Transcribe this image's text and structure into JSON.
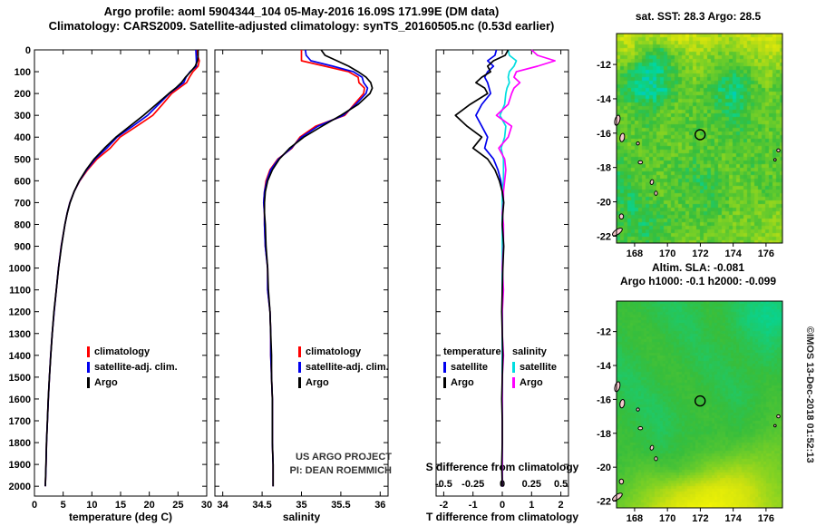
{
  "titles": {
    "line1": "Argo profile: aoml 5904344_104 05-May-2016 16.09S 171.99E (DM data)",
    "line2": "Climatology: CARS2009. Satellite-adjusted climatology: synTS_20160505.nc (0.53d earlier)"
  },
  "credits": {
    "project": "US ARGO PROJECT",
    "pi": "PI: DEAN ROEMMICH",
    "stamp": "©IMOS 13-Dec-2018 01:52:13"
  },
  "colors": {
    "climatology": "#ff0000",
    "satellite_clim": "#0000ee",
    "argo": "#000000",
    "s_satellite": "#00dde0",
    "s_argo": "#ff00ff"
  },
  "islands": [
    {
      "lon": 166.95,
      "lat": -15.25,
      "w": 0.3,
      "h": 0.6,
      "rot": 15
    },
    {
      "lon": 167.25,
      "lat": -16.25,
      "w": 0.28,
      "h": 0.5,
      "rot": 10
    },
    {
      "lon": 168.2,
      "lat": -16.6,
      "w": 0.18,
      "h": 0.18,
      "rot": 0
    },
    {
      "lon": 168.35,
      "lat": -17.7,
      "w": 0.26,
      "h": 0.18,
      "rot": 0
    },
    {
      "lon": 169.05,
      "lat": -18.85,
      "w": 0.2,
      "h": 0.28,
      "rot": 15
    },
    {
      "lon": 169.3,
      "lat": -19.5,
      "w": 0.18,
      "h": 0.24,
      "rot": 0
    },
    {
      "lon": 167.2,
      "lat": -20.85,
      "w": 0.25,
      "h": 0.3,
      "rot": 0
    },
    {
      "lon": 166.95,
      "lat": -21.75,
      "w": 0.7,
      "h": 0.28,
      "rot": -35
    },
    {
      "lon": 176.75,
      "lat": -17.0,
      "w": 0.2,
      "h": 0.18,
      "rot": 0
    },
    {
      "lon": 176.55,
      "lat": -17.55,
      "w": 0.14,
      "h": 0.14,
      "rot": 0
    }
  ],
  "chart_data": [
    {
      "type": "line",
      "title": "",
      "xlabel": "temperature (deg C)",
      "ylabel": "",
      "xlim": [
        0,
        30
      ],
      "xticks": [
        0,
        5,
        10,
        15,
        20,
        25,
        30
      ],
      "depth_lim": [
        0,
        2045
      ],
      "depth_ticks": [
        0,
        100,
        200,
        300,
        400,
        500,
        600,
        700,
        800,
        900,
        1000,
        1100,
        1200,
        1300,
        1400,
        1500,
        1600,
        1700,
        1800,
        1900,
        2000
      ],
      "depths": [
        0,
        25,
        50,
        75,
        100,
        125,
        150,
        175,
        200,
        250,
        300,
        350,
        400,
        450,
        500,
        550,
        600,
        650,
        700,
        750,
        800,
        900,
        1000,
        1100,
        1200,
        1300,
        1400,
        1500,
        1600,
        1700,
        1800,
        1900,
        2000
      ],
      "legend": [
        "climatology",
        "satellite-adj. clim.",
        "Argo"
      ],
      "series": [
        {
          "name": "climatology",
          "color_key": "climatology",
          "values": [
            28.3,
            28.4,
            28.7,
            28.5,
            27.6,
            27.0,
            26.5,
            25.2,
            23.9,
            22.3,
            20.6,
            17.8,
            14.9,
            13.2,
            10.9,
            9.25,
            7.9,
            6.9,
            6.15,
            5.68,
            5.3,
            4.65,
            4.18,
            3.8,
            3.42,
            3.1,
            2.83,
            2.6,
            2.42,
            2.25,
            2.1,
            2.02,
            1.9
          ]
        },
        {
          "name": "satellite-adj. clim.",
          "color_key": "satellite_clim",
          "values": [
            28.1,
            28.15,
            28.2,
            28.2,
            27.1,
            26.4,
            26.0,
            24.75,
            23.5,
            21.6,
            19.7,
            17.1,
            14.4,
            12.6,
            10.6,
            9.1,
            7.85,
            6.9,
            6.17,
            5.68,
            5.3,
            4.67,
            4.18,
            3.8,
            3.42,
            3.1,
            2.83,
            2.6,
            2.42,
            2.25,
            2.1,
            2.02,
            1.9
          ]
        },
        {
          "name": "Argo",
          "color_key": "argo",
          "values": [
            28.5,
            28.5,
            28.4,
            28.0,
            27.2,
            26.3,
            25.6,
            24.6,
            23.4,
            21.2,
            19.0,
            16.6,
            14.2,
            12.2,
            10.4,
            9.0,
            7.8,
            6.9,
            6.2,
            5.7,
            5.3,
            4.7,
            4.2,
            3.8,
            3.4,
            3.1,
            2.85,
            2.6,
            2.4,
            2.25,
            2.1,
            2.0,
            1.9
          ]
        }
      ]
    },
    {
      "type": "line",
      "title": "",
      "xlabel": "salinity",
      "ylabel": "",
      "xlim": [
        33.9,
        36.1
      ],
      "xticks": [
        34,
        34.5,
        35,
        35.5,
        36
      ],
      "depth_lim": [
        0,
        2045
      ],
      "depth_ticks": [
        0,
        100,
        200,
        300,
        400,
        500,
        600,
        700,
        800,
        900,
        1000,
        1100,
        1200,
        1300,
        1400,
        1500,
        1600,
        1700,
        1800,
        1900,
        2000
      ],
      "depths": [
        0,
        25,
        50,
        75,
        100,
        125,
        150,
        175,
        200,
        250,
        300,
        350,
        400,
        450,
        500,
        550,
        600,
        650,
        700,
        750,
        800,
        900,
        1000,
        1100,
        1200,
        1300,
        1400,
        1500,
        1600,
        1700,
        1800,
        1900,
        2000
      ],
      "legend": [
        "climatology",
        "satellite-adj. clim.",
        "Argo"
      ],
      "series": [
        {
          "name": "climatology",
          "color_key": "climatology",
          "values": [
            35.0,
            35.0,
            35.0,
            35.3,
            35.6,
            35.72,
            35.73,
            35.8,
            35.79,
            35.67,
            35.55,
            35.18,
            34.98,
            34.88,
            34.7,
            34.6,
            34.55,
            34.53,
            34.52,
            34.53,
            34.53,
            34.54,
            34.57,
            34.57,
            34.6,
            34.61,
            34.61,
            34.62,
            34.63,
            34.63,
            34.63,
            34.64,
            34.64
          ]
        },
        {
          "name": "satellite-adj. clim.",
          "color_key": "satellite_clim",
          "values": [
            35.05,
            35.06,
            35.12,
            35.4,
            35.66,
            35.77,
            35.79,
            35.84,
            35.82,
            35.69,
            35.53,
            35.21,
            35.0,
            34.87,
            34.71,
            34.61,
            34.56,
            34.53,
            34.52,
            34.53,
            34.53,
            34.54,
            34.57,
            34.57,
            34.6,
            34.61,
            34.61,
            34.62,
            34.63,
            34.63,
            34.63,
            34.64,
            34.64
          ]
        },
        {
          "name": "Argo",
          "color_key": "argo",
          "values": [
            35.25,
            35.3,
            35.45,
            35.6,
            35.72,
            35.82,
            35.88,
            35.9,
            35.87,
            35.72,
            35.5,
            35.26,
            35.03,
            34.85,
            34.72,
            34.63,
            34.57,
            34.54,
            34.53,
            34.53,
            34.54,
            34.55,
            34.57,
            34.58,
            34.6,
            34.61,
            34.62,
            34.62,
            34.63,
            34.63,
            34.63,
            34.64,
            34.64
          ]
        }
      ]
    },
    {
      "type": "line",
      "title": "",
      "xlabel": "T difference from climatology",
      "ylabel": "",
      "xlim": [
        -2.26,
        2.26
      ],
      "xticks": [
        -2,
        -1,
        0,
        1,
        2
      ],
      "s_axis": {
        "label": "S difference from climatology",
        "ticks": [
          -0.5,
          -0.25,
          0,
          0.25,
          0.5
        ],
        "scale_factor": 4
      },
      "depth_lim": [
        0,
        2045
      ],
      "depth_ticks": [
        0,
        100,
        200,
        300,
        400,
        500,
        600,
        700,
        800,
        900,
        1000,
        1100,
        1200,
        1300,
        1400,
        1500,
        1600,
        1700,
        1800,
        1900,
        2000
      ],
      "depths": [
        0,
        25,
        50,
        75,
        100,
        125,
        150,
        175,
        200,
        250,
        300,
        350,
        400,
        450,
        500,
        550,
        600,
        650,
        700,
        750,
        800,
        900,
        1000,
        1100,
        1200,
        1300,
        1400,
        1500,
        1600,
        1700,
        1800,
        1900,
        2000
      ],
      "legend_groups": [
        {
          "title": "temperature",
          "entries": [
            {
              "label": "satellite",
              "color_key": "satellite_clim"
            },
            {
              "label": "Argo",
              "color_key": "argo"
            }
          ]
        },
        {
          "title": "salinity",
          "entries": [
            {
              "label": "satellite",
              "color_key": "s_satellite"
            },
            {
              "label": "Argo",
              "color_key": "s_argo"
            }
          ]
        }
      ],
      "series": [
        {
          "name": "T satellite",
          "color_key": "satellite_clim",
          "values": [
            -0.2,
            -0.25,
            -0.5,
            -0.3,
            -0.5,
            -0.6,
            -0.5,
            -0.45,
            -0.4,
            -0.7,
            -0.9,
            -0.7,
            -0.5,
            -0.6,
            -0.3,
            -0.15,
            -0.05,
            0,
            0.02,
            0,
            0,
            0.02,
            0,
            0,
            0,
            0,
            0,
            0,
            0,
            0,
            0,
            0,
            0
          ]
        },
        {
          "name": "S satellite",
          "color_key": "s_satellite",
          "scale": "s",
          "values": [
            0.05,
            0.06,
            0.12,
            0.1,
            0.06,
            0.05,
            0.06,
            0.04,
            0.03,
            0.02,
            -0.02,
            0.03,
            0.02,
            -0.01,
            0.01,
            0.01,
            0.01,
            0,
            0,
            0,
            0,
            0,
            0,
            0,
            0,
            0,
            0,
            0,
            0,
            0,
            0,
            0,
            0
          ]
        },
        {
          "name": "S Argo",
          "color_key": "s_argo",
          "scale": "s",
          "values": [
            0.25,
            0.3,
            0.45,
            0.3,
            0.12,
            0.1,
            0.15,
            0.1,
            0.08,
            0.05,
            -0.05,
            0.08,
            0.05,
            -0.03,
            0.02,
            0.03,
            0.02,
            0.01,
            0.01,
            0,
            0.01,
            0.01,
            0,
            0.01,
            0,
            0,
            0.01,
            0,
            0,
            0,
            0,
            0,
            0
          ]
        },
        {
          "name": "T Argo",
          "color_key": "argo",
          "values": [
            0.2,
            0.1,
            -0.3,
            -0.5,
            -0.4,
            -0.7,
            -0.9,
            -0.6,
            -0.5,
            -1.1,
            -1.6,
            -1.2,
            -0.7,
            -1.0,
            -0.5,
            -0.25,
            -0.1,
            0,
            0.05,
            0.02,
            0,
            0.05,
            0.02,
            0,
            -0.02,
            0,
            0.02,
            0,
            -0.02,
            0,
            0,
            -0.02,
            0
          ]
        }
      ]
    },
    {
      "type": "heatmap",
      "title": "sat. SST: 28.3 Argo: 28.5",
      "lon_lim": [
        166.9,
        177.0
      ],
      "lat_lim": [
        -10.2,
        -22.4
      ],
      "lon_ticks": [
        168,
        170,
        172,
        174,
        176
      ],
      "lat_ticks": [
        -12,
        -14,
        -16,
        -18,
        -20,
        -22
      ],
      "marker": {
        "lon": 171.99,
        "lat": -16.09
      },
      "grid": [
        [
          0.82,
          0.78,
          0.75,
          0.8,
          0.85,
          0.82,
          0.78,
          0.72,
          0.75,
          0.8,
          0.85,
          0.82
        ],
        [
          0.72,
          0.7,
          0.52,
          0.45,
          0.62,
          0.72,
          0.68,
          0.62,
          0.66,
          0.7,
          0.76,
          0.72
        ],
        [
          0.6,
          0.48,
          0.35,
          0.42,
          0.55,
          0.65,
          0.6,
          0.52,
          0.48,
          0.6,
          0.66,
          0.62
        ],
        [
          0.55,
          0.45,
          0.32,
          0.38,
          0.52,
          0.6,
          0.55,
          0.42,
          0.35,
          0.52,
          0.6,
          0.56
        ],
        [
          0.58,
          0.55,
          0.48,
          0.55,
          0.6,
          0.58,
          0.55,
          0.48,
          0.45,
          0.55,
          0.6,
          0.58
        ],
        [
          0.6,
          0.58,
          0.55,
          0.6,
          0.58,
          0.55,
          0.58,
          0.55,
          0.5,
          0.55,
          0.58,
          0.6
        ],
        [
          0.55,
          0.6,
          0.58,
          0.55,
          0.6,
          0.58,
          0.55,
          0.58,
          0.55,
          0.58,
          0.55,
          0.6
        ],
        [
          0.5,
          0.55,
          0.6,
          0.58,
          0.55,
          0.5,
          0.55,
          0.58,
          0.6,
          0.55,
          0.58,
          0.55
        ],
        [
          0.45,
          0.5,
          0.55,
          0.6,
          0.55,
          0.5,
          0.45,
          0.55,
          0.6,
          0.58,
          0.55,
          0.6
        ],
        [
          0.5,
          0.45,
          0.5,
          0.55,
          0.58,
          0.55,
          0.5,
          0.55,
          0.6,
          0.62,
          0.6,
          0.64
        ],
        [
          0.55,
          0.5,
          0.45,
          0.5,
          0.55,
          0.6,
          0.55,
          0.6,
          0.64,
          0.6,
          0.65,
          0.68
        ],
        [
          0.5,
          0.55,
          0.5,
          0.55,
          0.6,
          0.64,
          0.6,
          0.64,
          0.6,
          0.65,
          0.7,
          0.66
        ]
      ]
    },
    {
      "type": "heatmap",
      "title_line1": "Altim. SLA: -0.081",
      "title_line2": "Argo h1000: -0.1 h2000: -0.099",
      "lon_lim": [
        166.9,
        177.0
      ],
      "lat_lim": [
        -10.2,
        -22.4
      ],
      "lon_ticks": [
        168,
        170,
        172,
        174,
        176
      ],
      "lat_ticks": [
        -12,
        -14,
        -16,
        -18,
        -20,
        -22
      ],
      "marker": {
        "lon": 171.99,
        "lat": -16.09
      },
      "grid": [
        [
          0.5,
          0.5,
          0.48,
          0.45,
          0.45,
          0.48,
          0.5,
          0.48,
          0.45,
          0.42,
          0.4,
          0.42
        ],
        [
          0.5,
          0.52,
          0.5,
          0.48,
          0.45,
          0.45,
          0.5,
          0.5,
          0.45,
          0.4,
          0.38,
          0.4
        ],
        [
          0.48,
          0.5,
          0.52,
          0.5,
          0.48,
          0.45,
          0.48,
          0.5,
          0.48,
          0.45,
          0.42,
          0.45
        ],
        [
          0.45,
          0.48,
          0.5,
          0.52,
          0.5,
          0.48,
          0.45,
          0.48,
          0.5,
          0.48,
          0.45,
          0.48
        ],
        [
          0.45,
          0.45,
          0.48,
          0.5,
          0.52,
          0.5,
          0.48,
          0.45,
          0.48,
          0.5,
          0.5,
          0.5
        ],
        [
          0.48,
          0.45,
          0.45,
          0.48,
          0.5,
          0.52,
          0.5,
          0.48,
          0.45,
          0.48,
          0.52,
          0.52
        ],
        [
          0.5,
          0.48,
          0.45,
          0.45,
          0.48,
          0.5,
          0.52,
          0.5,
          0.48,
          0.5,
          0.52,
          0.55
        ],
        [
          0.52,
          0.5,
          0.48,
          0.45,
          0.48,
          0.5,
          0.5,
          0.52,
          0.5,
          0.52,
          0.55,
          0.58
        ],
        [
          0.5,
          0.52,
          0.5,
          0.48,
          0.5,
          0.52,
          0.55,
          0.55,
          0.58,
          0.6,
          0.62,
          0.6
        ],
        [
          0.52,
          0.55,
          0.58,
          0.55,
          0.55,
          0.6,
          0.65,
          0.7,
          0.72,
          0.7,
          0.65,
          0.62
        ],
        [
          0.55,
          0.6,
          0.65,
          0.7,
          0.75,
          0.8,
          0.85,
          0.88,
          0.85,
          0.78,
          0.7,
          0.65
        ],
        [
          0.6,
          0.65,
          0.72,
          0.8,
          0.88,
          0.92,
          0.95,
          0.92,
          0.88,
          0.8,
          0.72,
          0.68
        ]
      ]
    }
  ]
}
